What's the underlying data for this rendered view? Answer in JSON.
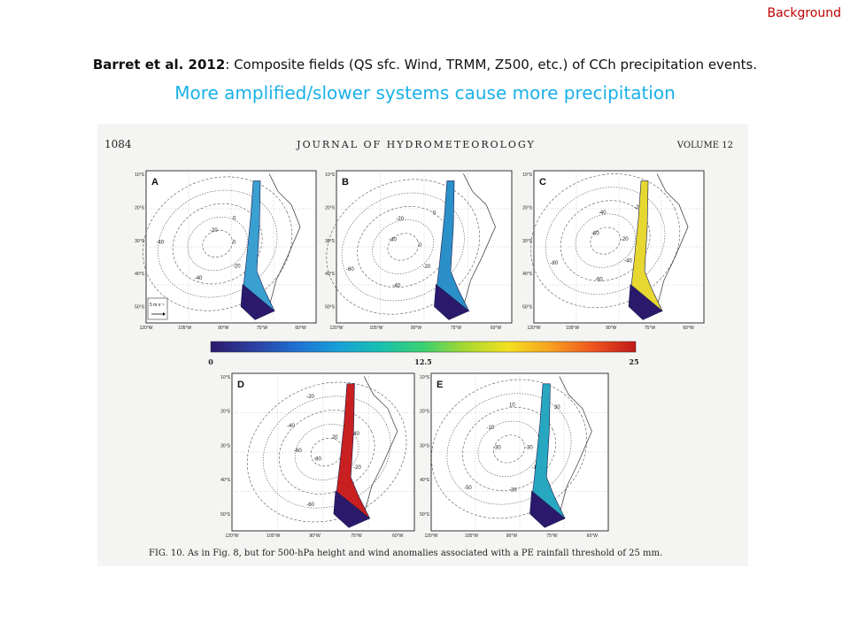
{
  "slide": {
    "tag": "Background",
    "headline": {
      "citation": "Barret et al. 2012",
      "rest": ": Composite fields (QS sfc. Wind, TRMM, Z500, etc.) of CCh precipitation events."
    },
    "subline": "More amplified/slower systems cause more precipitation"
  },
  "journal": {
    "page": "1084",
    "name": "JOURNAL OF HYDROMETEOROLOGY",
    "volume": "VOLUME 12"
  },
  "panels": [
    {
      "label": "A",
      "contours": [
        "0",
        "-20",
        "-40",
        "-40",
        "-20",
        "0"
      ]
    },
    {
      "label": "B",
      "contours": [
        "0",
        "-20",
        "-40",
        "-60",
        "-40",
        "-20",
        "0"
      ]
    },
    {
      "label": "C",
      "contours": [
        "-20",
        "-40",
        "-60",
        "-80",
        "-60",
        "-40",
        "-20"
      ]
    },
    {
      "label": "D",
      "contours": [
        "0",
        "-20",
        "-40",
        "-60",
        "-80",
        "-60",
        "-40",
        "-20",
        "20",
        "40"
      ]
    },
    {
      "label": "E",
      "contours": [
        "-30",
        "-10",
        "-30",
        "-50",
        "-30",
        "-10",
        "10",
        "30"
      ]
    }
  ],
  "axes": {
    "lat_ticks": [
      "10°S",
      "20°S",
      "30°S",
      "40°S",
      "50°S"
    ],
    "lon_ticks": [
      "120°W",
      "105°W",
      "90°W",
      "75°W",
      "60°W"
    ],
    "lon_ticks_c": [
      "120°W",
      "105°W",
      "90°W",
      "75°W",
      "60°W"
    ],
    "wind_scale": "5 m s⁻¹"
  },
  "colorbar": {
    "ticks": [
      "0",
      "12.5",
      "25"
    ],
    "colors": [
      "#2b1a6b",
      "#2c3fa0",
      "#1f6fd0",
      "#18a0d8",
      "#19c0b0",
      "#3ad070",
      "#a8d830",
      "#f4e020",
      "#f7a020",
      "#ee5520",
      "#c01818"
    ]
  },
  "caption": "FIG. 10. As in Fig. 8, but for 500-hPa height and wind anomalies associated with a PE rainfall threshold of 25 mm."
}
